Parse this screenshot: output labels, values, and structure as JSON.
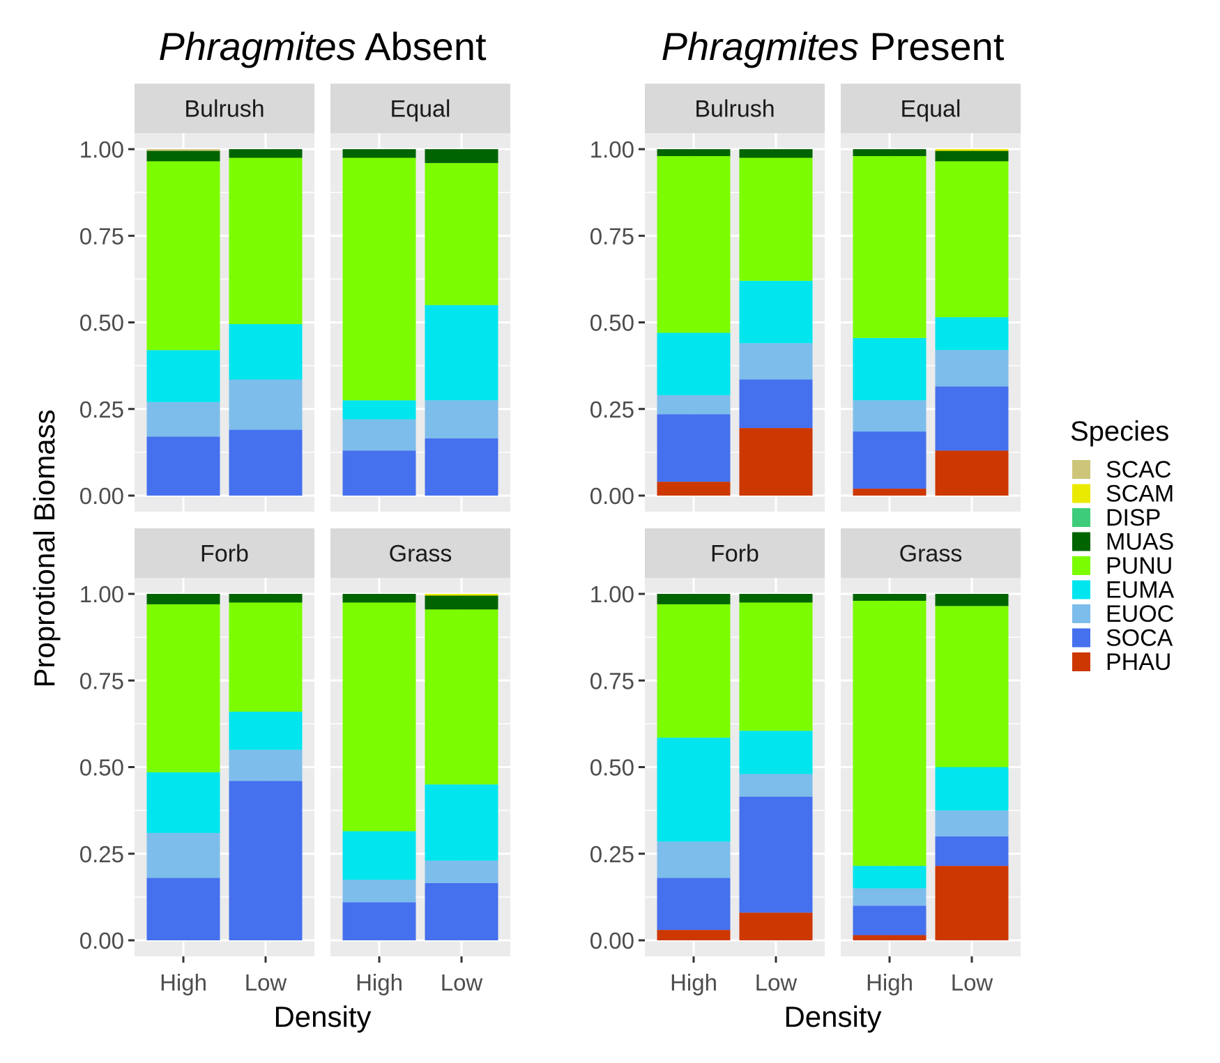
{
  "chart_data": [
    {
      "type": "bar",
      "stacked": true,
      "title_italic": "Phragmites",
      "title_rest": " Absent",
      "xlabel": "Density",
      "ylabel": "Proprotional Biomass",
      "ylim": [
        0,
        1
      ],
      "yticks": [
        "0.00",
        "0.25",
        "0.50",
        "0.75",
        "1.00"
      ],
      "categories": [
        "High",
        "Low"
      ],
      "facets": [
        {
          "name": "Bulrush",
          "bars": [
            {
              "SOCA": 0.17,
              "EUOC": 0.1,
              "EUMA": 0.15,
              "PUNU": 0.545,
              "MUAS": 0.03,
              "SCAC": 0.005
            },
            {
              "SOCA": 0.19,
              "EUOC": 0.145,
              "EUMA": 0.16,
              "PUNU": 0.48,
              "MUAS": 0.025
            }
          ]
        },
        {
          "name": "Equal",
          "bars": [
            {
              "SOCA": 0.13,
              "EUOC": 0.09,
              "EUMA": 0.055,
              "PUNU": 0.7,
              "MUAS": 0.025
            },
            {
              "SOCA": 0.165,
              "EUOC": 0.11,
              "EUMA": 0.275,
              "PUNU": 0.41,
              "MUAS": 0.04
            }
          ]
        },
        {
          "name": "Forb",
          "bars": [
            {
              "SOCA": 0.18,
              "EUOC": 0.13,
              "EUMA": 0.175,
              "PUNU": 0.485,
              "MUAS": 0.03
            },
            {
              "SOCA": 0.46,
              "EUOC": 0.09,
              "EUMA": 0.11,
              "PUNU": 0.315,
              "MUAS": 0.025
            }
          ]
        },
        {
          "name": "Grass",
          "bars": [
            {
              "SOCA": 0.11,
              "EUOC": 0.065,
              "EUMA": 0.14,
              "PUNU": 0.66,
              "MUAS": 0.025
            },
            {
              "SOCA": 0.165,
              "EUOC": 0.065,
              "EUMA": 0.22,
              "PUNU": 0.505,
              "MUAS": 0.04,
              "SCAM": 0.005
            }
          ]
        }
      ]
    },
    {
      "type": "bar",
      "stacked": true,
      "title_italic": "Phragmites",
      "title_rest": " Present",
      "xlabel": "Density",
      "ylabel": "",
      "ylim": [
        0,
        1
      ],
      "yticks": [
        "0.00",
        "0.25",
        "0.50",
        "0.75",
        "1.00"
      ],
      "categories": [
        "High",
        "Low"
      ],
      "facets": [
        {
          "name": "Bulrush",
          "bars": [
            {
              "PHAU": 0.04,
              "SOCA": 0.195,
              "EUOC": 0.055,
              "EUMA": 0.18,
              "PUNU": 0.51,
              "MUAS": 0.02
            },
            {
              "PHAU": 0.195,
              "SOCA": 0.14,
              "EUOC": 0.105,
              "EUMA": 0.18,
              "PUNU": 0.355,
              "MUAS": 0.025
            }
          ]
        },
        {
          "name": "Equal",
          "bars": [
            {
              "PHAU": 0.02,
              "SOCA": 0.165,
              "EUOC": 0.09,
              "EUMA": 0.18,
              "PUNU": 0.525,
              "MUAS": 0.02
            },
            {
              "PHAU": 0.13,
              "SOCA": 0.185,
              "EUOC": 0.105,
              "EUMA": 0.095,
              "PUNU": 0.45,
              "MUAS": 0.03,
              "SCAM": 0.005
            }
          ]
        },
        {
          "name": "Forb",
          "bars": [
            {
              "PHAU": 0.03,
              "SOCA": 0.15,
              "EUOC": 0.105,
              "EUMA": 0.3,
              "PUNU": 0.385,
              "MUAS": 0.03
            },
            {
              "PHAU": 0.08,
              "SOCA": 0.335,
              "EUOC": 0.065,
              "EUMA": 0.125,
              "PUNU": 0.37,
              "MUAS": 0.025
            }
          ]
        },
        {
          "name": "Grass",
          "bars": [
            {
              "PHAU": 0.015,
              "SOCA": 0.085,
              "EUOC": 0.05,
              "EUMA": 0.065,
              "PUNU": 0.765,
              "MUAS": 0.02
            },
            {
              "PHAU": 0.215,
              "SOCA": 0.085,
              "EUOC": 0.075,
              "EUMA": 0.125,
              "PUNU": 0.465,
              "MUAS": 0.035
            }
          ]
        }
      ]
    }
  ],
  "legend": {
    "title": "Species",
    "items": [
      {
        "name": "SCAC",
        "color": "#cdc67a"
      },
      {
        "name": "SCAM",
        "color": "#eaea00"
      },
      {
        "name": "DISP",
        "color": "#3dcc7a"
      },
      {
        "name": "MUAS",
        "color": "#006400"
      },
      {
        "name": "PUNU",
        "color": "#7cfc00"
      },
      {
        "name": "EUMA",
        "color": "#00e5ee"
      },
      {
        "name": "EUOC",
        "color": "#7dbdeb"
      },
      {
        "name": "SOCA",
        "color": "#4570ee"
      },
      {
        "name": "PHAU",
        "color": "#cd3700"
      }
    ]
  }
}
